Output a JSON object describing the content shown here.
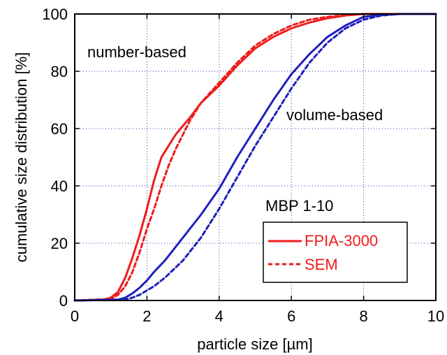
{
  "chart_data": {
    "type": "line",
    "xlabel": "particle size  [µm]",
    "ylabel": "cumulative size distribution  [%]",
    "xlim": [
      0,
      10
    ],
    "ylim": [
      0,
      100
    ],
    "xticks": [
      "0",
      "2",
      "4",
      "6",
      "8",
      "10"
    ],
    "yticks": [
      "0",
      "20",
      "40",
      "60",
      "80",
      "100"
    ],
    "grid": true,
    "annotations": [
      "number-based",
      "volume-based",
      "MBP 1-10"
    ],
    "legend": {
      "placement": "lower-right",
      "entries": [
        {
          "label": "FPIA-3000",
          "style": "solid",
          "color": "#ee1c1c"
        },
        {
          "label": "SEM",
          "style": "dashed",
          "color": "#ee1c1c"
        }
      ]
    },
    "colors": {
      "number_based": "#ee1c1c",
      "volume_based": "#1f1fbf"
    },
    "series": [
      {
        "style": "solid",
        "color": "#ee1c1c",
        "x": [
          0,
          0.8,
          1.0,
          1.2,
          1.4,
          1.6,
          1.8,
          2.0,
          2.2,
          2.4,
          2.6,
          2.8,
          3.0,
          3.2,
          3.5,
          4.0,
          4.5,
          5.0,
          5.5,
          6.0,
          6.5,
          7.0,
          7.5,
          8.0,
          10.0
        ],
        "y": [
          0,
          0.3,
          1,
          3,
          8,
          15,
          23,
          32,
          42,
          50,
          54,
          58,
          61,
          64,
          69,
          75,
          82,
          88,
          92,
          95,
          97,
          98.5,
          99.5,
          100,
          100
        ]
      },
      {
        "style": "dashed",
        "color": "#ee1c1c",
        "x": [
          0,
          1.0,
          1.2,
          1.4,
          1.6,
          1.8,
          2.0,
          2.2,
          2.4,
          2.6,
          2.8,
          3.0,
          3.2,
          3.5,
          4.0,
          4.5,
          5.0,
          5.5,
          6.0,
          6.5,
          7.0,
          7.5,
          8.0,
          10.0
        ],
        "y": [
          0,
          0.5,
          2,
          5,
          10,
          17,
          25,
          32,
          40,
          47,
          53,
          58,
          63,
          69,
          76,
          83,
          89,
          93,
          96,
          98,
          99,
          99.6,
          100,
          100
        ]
      },
      {
        "style": "solid",
        "color": "#1f1fbf",
        "x": [
          0,
          1.2,
          1.4,
          1.6,
          1.8,
          2.0,
          2.2,
          2.5,
          3.0,
          3.5,
          4.0,
          4.5,
          5.0,
          5.5,
          6.0,
          6.5,
          7.0,
          7.5,
          8.0,
          8.5,
          9.0,
          10.0
        ],
        "y": [
          0,
          0.3,
          1,
          2.5,
          4.5,
          7,
          10,
          14,
          22,
          30,
          39,
          50,
          60,
          70,
          79,
          86,
          92,
          96,
          99,
          99.7,
          100,
          100
        ]
      },
      {
        "style": "dashed",
        "color": "#1f1fbf",
        "x": [
          0,
          1.4,
          1.6,
          1.8,
          2.0,
          2.2,
          2.5,
          3.0,
          3.5,
          4.0,
          4.5,
          5.0,
          5.5,
          6.0,
          6.5,
          7.0,
          7.5,
          8.0,
          8.5,
          9.0,
          10.0
        ],
        "y": [
          0,
          0.3,
          1,
          2,
          3.5,
          5,
          8,
          14,
          22,
          32,
          43,
          54,
          64,
          74,
          83,
          90,
          95,
          98,
          99.5,
          100,
          100
        ]
      }
    ]
  }
}
